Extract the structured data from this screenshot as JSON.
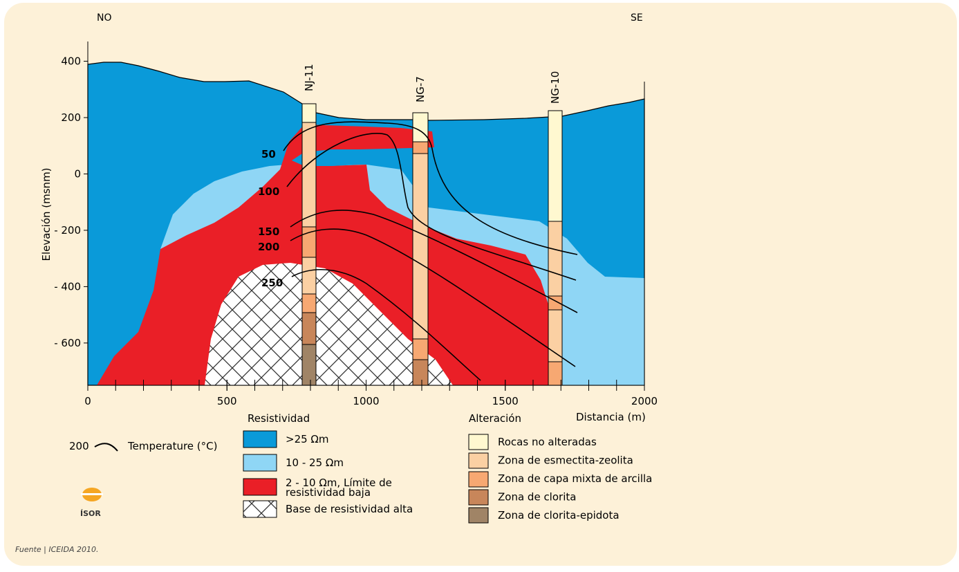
{
  "header": {
    "left": "NO",
    "right": "SE"
  },
  "axes": {
    "y_label": "Elevación (msnm)",
    "x_label": "Distancia (m)",
    "xlim": [
      0,
      2000
    ],
    "ylim": [
      -750,
      470
    ],
    "xticks": [
      0,
      500,
      1000,
      1500,
      2000
    ],
    "yticks": [
      {
        "value": 400,
        "label": "400"
      },
      {
        "value": 200,
        "label": "200"
      },
      {
        "value": 0,
        "label": "0"
      },
      {
        "value": -200,
        "label": "- 200"
      },
      {
        "value": -400,
        "label": "- 400"
      },
      {
        "value": -600,
        "label": "- 600"
      }
    ]
  },
  "wells": [
    {
      "label": "NJ-11"
    },
    {
      "label": "NG-7"
    },
    {
      "label": "NG-10"
    }
  ],
  "isotherms": [
    {
      "label": "50"
    },
    {
      "label": "100"
    },
    {
      "label": "150"
    },
    {
      "label": "200"
    },
    {
      "label": "250"
    }
  ],
  "legend": {
    "temperature": {
      "sample": "200",
      "label": "Temperature (°C)"
    },
    "resistivity": {
      "title": "Resistividad",
      "items": [
        ">25 Ωm",
        "10 - 25 Ωm",
        [
          "2 - 10 Ωm, Límite de",
          "resistividad baja"
        ],
        "Base de resistividad alta"
      ]
    },
    "alteration": {
      "title": "Alteración",
      "items": [
        "Rocas no alteradas",
        "Zona de esmectita-zeolita",
        "Zona de capa mixta de arcilla",
        "Zona de clorita",
        "Zona de clorita-epidota"
      ]
    }
  },
  "logo": "ÍSOR",
  "source": "Fuente | ICEIDA 2010."
}
